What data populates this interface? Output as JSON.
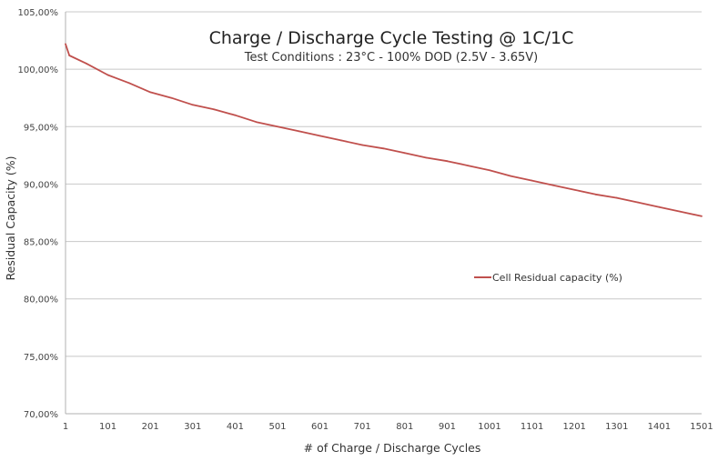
{
  "chart_data": {
    "type": "line",
    "title": "Charge / Discharge Cycle Testing @ 1C/1C",
    "subtitle": "Test Conditions : 23°C - 100% DOD (2.5V - 3.65V)",
    "xlabel": "# of Charge / Discharge Cycles",
    "ylabel": "Residual Capacity (%)",
    "xlim": [
      1,
      1501
    ],
    "ylim": [
      70,
      105
    ],
    "x_ticks": [
      1,
      101,
      201,
      301,
      401,
      501,
      601,
      701,
      801,
      901,
      1001,
      1101,
      1201,
      1301,
      1401,
      1501
    ],
    "x_tick_labels": [
      "1",
      "101",
      "201",
      "301",
      "401",
      "501",
      "601",
      "701",
      "801",
      "901",
      "1001",
      "1101",
      "1201",
      "1301",
      "1401",
      "1501"
    ],
    "y_ticks": [
      70,
      75,
      80,
      85,
      90,
      95,
      100,
      105
    ],
    "y_tick_labels": [
      "70,00%",
      "75,00%",
      "80,00%",
      "85,00%",
      "90,00%",
      "95,00%",
      "100,00%",
      "105,00%"
    ],
    "grid": "horizontal",
    "legend_position": "center-right",
    "series": [
      {
        "name": "Cell Residual capacity (%)",
        "color": "#c0504d",
        "x": [
          1,
          10,
          50,
          101,
          151,
          201,
          251,
          301,
          351,
          401,
          451,
          501,
          551,
          601,
          651,
          701,
          751,
          801,
          851,
          901,
          951,
          1001,
          1051,
          1101,
          1151,
          1201,
          1251,
          1301,
          1351,
          1401,
          1451,
          1501
        ],
        "values": [
          102.2,
          101.2,
          100.5,
          99.5,
          98.8,
          98.0,
          97.5,
          96.9,
          96.5,
          96.0,
          95.4,
          95.0,
          94.6,
          94.2,
          93.8,
          93.4,
          93.1,
          92.7,
          92.3,
          92.0,
          91.6,
          91.2,
          90.7,
          90.3,
          89.9,
          89.5,
          89.1,
          88.8,
          88.4,
          88.0,
          87.6,
          87.2
        ]
      }
    ]
  },
  "colors": {
    "series": "#c0504d",
    "grid": "#c8c8c8",
    "axis": "#b0b0b0"
  }
}
